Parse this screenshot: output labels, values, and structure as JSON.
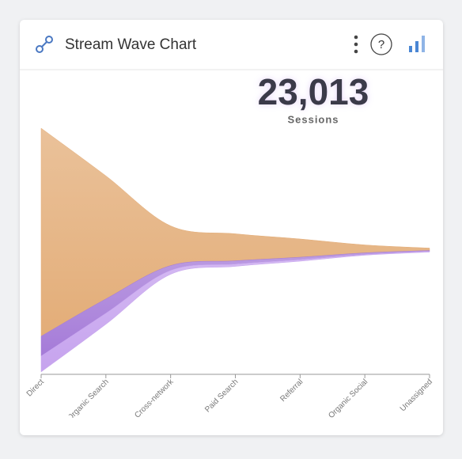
{
  "chart_data": {
    "type": "streamgraph",
    "title": "Stream Wave Chart",
    "kpi_value": "23,013",
    "kpi_label": "Sessions",
    "categories": [
      "Direct",
      "Organic Search",
      "Cross-network",
      "Paid Search",
      "Referral",
      "Organic Social",
      "Unassigned"
    ],
    "series": [
      {
        "color": "#e3ad78",
        "values": [
          262,
          155,
          50,
          34,
          23,
          10,
          3
        ]
      },
      {
        "color": "#a57bd8",
        "values": [
          25,
          18,
          6,
          4,
          3,
          2,
          1
        ]
      },
      {
        "color": "#c6a3ee",
        "values": [
          20,
          14,
          5,
          3,
          2,
          1,
          1
        ]
      }
    ]
  }
}
